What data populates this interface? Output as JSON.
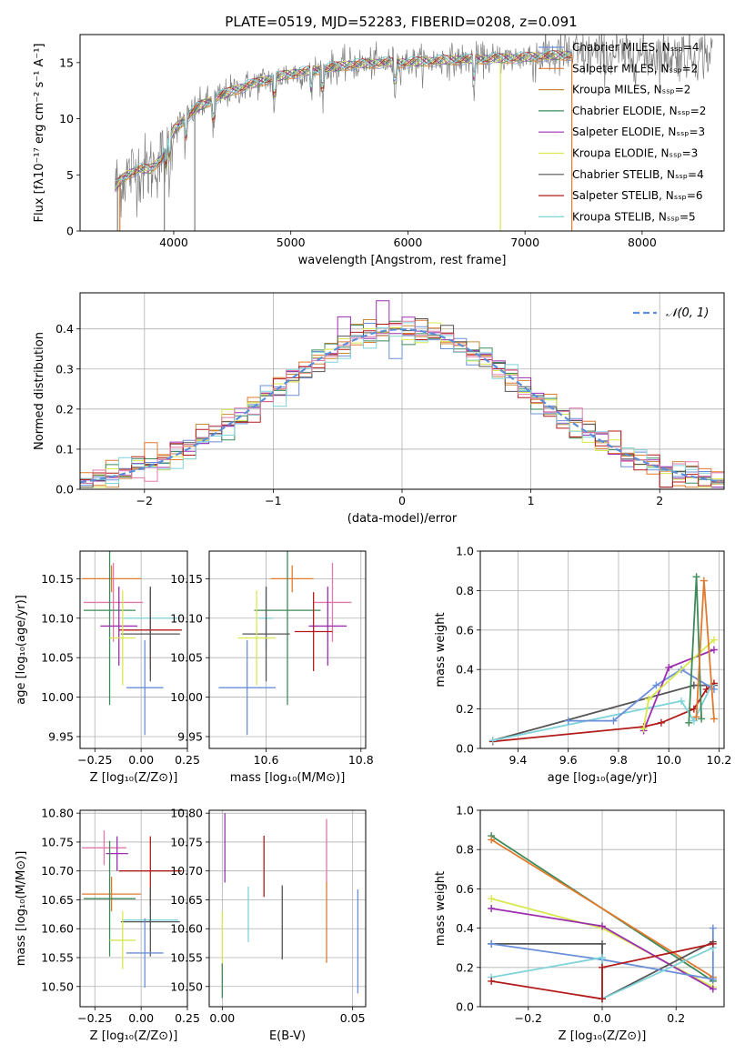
{
  "title": "PLATE=0519, MJD=52283, FIBERID=0208, z=0.091",
  "colors": {
    "Chabrier MILES": "#6a8fd8",
    "Salpeter MILES": "#e07a2e",
    "Kroupa MILES": "#c78a3a",
    "Chabrier ELODIE": "#3f8a5a",
    "Salpeter ELODIE": "#9b2fb0",
    "Kroupa ELODIE": "#d8e84e",
    "Chabrier STELIB": "#555555",
    "Salpeter STELIB": "#b31b1b",
    "Kroupa STELIB": "#7fd3da",
    "Kroupa MILES (pink)": "#e07aa8"
  },
  "chart_data": [
    {
      "id": "spectrum",
      "type": "line",
      "xlabel": "wavelength [Angstrom, rest frame]",
      "ylabel": "Flux [fλ10⁻¹⁷ erg cm⁻² s⁻¹ A⁻¹]",
      "xlim": [
        3200,
        8700
      ],
      "ylim": [
        0,
        17.5
      ],
      "xticks": [
        4000,
        5000,
        6000,
        7000,
        8000
      ],
      "yticks": [
        0,
        5,
        10,
        15
      ],
      "grid": false,
      "legend_position": "top-right",
      "legend": [
        "Chabrier MILES, Nₛₛₚ=4",
        "Salpeter MILES, Nₛₛₚ=2",
        "Kroupa MILES, Nₛₛₚ=2",
        "Chabrier ELODIE, Nₛₛₚ=2",
        "Salpeter ELODIE, Nₛₛₚ=3",
        "Kroupa ELODIE, Nₛₛₚ=3",
        "Chabrier STELIB, Nₛₛₚ=4",
        "Salpeter STELIB, Nₛₛₚ=6",
        "Kroupa STELIB, Nₛₛₚ=5"
      ],
      "continuum": {
        "x": [
          3500,
          3600,
          3700,
          3800,
          3900,
          4000,
          4200,
          4500,
          4800,
          5000,
          5200,
          5500,
          5800,
          6000,
          6300,
          6600,
          6900,
          7200,
          7400
        ],
        "y": [
          4.0,
          5.0,
          5.5,
          5.5,
          6.5,
          9.0,
          11.0,
          12.5,
          13.5,
          14.0,
          14.3,
          14.8,
          15.0,
          15.0,
          15.2,
          15.3,
          15.4,
          15.6,
          15.7
        ]
      }
    },
    {
      "id": "residuals",
      "type": "histogram",
      "xlabel": "(data-model)/error",
      "ylabel": "Normed distribution",
      "xlim": [
        -2.5,
        2.5
      ],
      "ylim": [
        0,
        0.49
      ],
      "xticks": [
        -2,
        -1,
        0,
        1,
        2
      ],
      "yticks": [
        0.0,
        0.1,
        0.2,
        0.3,
        0.4
      ],
      "grid": true,
      "legend": [
        "𝒩(0, 1)"
      ],
      "legend_position": "top-right",
      "bin_width": 0.1
    },
    {
      "id": "age_vs_Z",
      "type": "errorbar",
      "xlabel": "Z [log₁₀(Z/Z⊙)]",
      "ylabel": "age  [log₁₀(age/yr)]",
      "xlim": [
        -0.33,
        0.25
      ],
      "ylim": [
        9.935,
        10.185
      ],
      "xticks": [
        -0.25,
        0.0,
        0.25
      ],
      "yticks": [
        9.95,
        10.0,
        10.05,
        10.1,
        10.15
      ],
      "grid": true,
      "points": [
        {
          "x": -0.16,
          "y": 10.15,
          "xerr": 0.16,
          "yerr": 0.017,
          "color": "#e07a2e"
        },
        {
          "x": -0.15,
          "y": 10.12,
          "xerr": 0.16,
          "yerr": 0.05,
          "color": "#e07aa8"
        },
        {
          "x": -0.17,
          "y": 10.11,
          "xerr": 0.14,
          "yerr": 0.12,
          "color": "#3f8a5a"
        },
        {
          "x": -0.12,
          "y": 10.09,
          "xerr": 0.1,
          "yerr": 0.05,
          "color": "#9b2fb0"
        },
        {
          "x": 0.05,
          "y": 10.1,
          "xerr": 0.15,
          "yerr": 0.04,
          "color": "#7fd3da"
        },
        {
          "x": 0.05,
          "y": 10.085,
          "xerr": 0.17,
          "yerr": 0.05,
          "color": "#b31b1b"
        },
        {
          "x": 0.05,
          "y": 10.08,
          "xerr": 0.16,
          "yerr": 0.06,
          "color": "#555555"
        },
        {
          "x": -0.1,
          "y": 10.075,
          "xerr": 0.07,
          "yerr": 0.06,
          "color": "#d8e84e"
        },
        {
          "x": 0.02,
          "y": 10.012,
          "xerr": 0.1,
          "yerr": 0.06,
          "color": "#6a8fd8"
        }
      ]
    },
    {
      "id": "age_vs_mass",
      "type": "errorbar",
      "xlabel": "mass [log₁₀(M/M⊙)]",
      "ylabel": "",
      "xlim": [
        10.48,
        10.81
      ],
      "ylim": [
        9.935,
        10.185
      ],
      "xticks": [
        10.6,
        10.8
      ],
      "yticks": [
        9.95,
        10.0,
        10.05,
        10.1,
        10.15
      ],
      "grid": true,
      "points": [
        {
          "x": 10.655,
          "y": 10.15,
          "xerr": 0.045,
          "yerr": 0.017,
          "color": "#e07a2e"
        },
        {
          "x": 10.74,
          "y": 10.12,
          "xerr": 0.04,
          "yerr": 0.05,
          "color": "#e07aa8"
        },
        {
          "x": 10.645,
          "y": 10.11,
          "xerr": 0.07,
          "yerr": 0.12,
          "color": "#3f8a5a"
        },
        {
          "x": 10.73,
          "y": 10.09,
          "xerr": 0.04,
          "yerr": 0.05,
          "color": "#9b2fb0"
        },
        {
          "x": 10.6,
          "y": 10.1,
          "xerr": 0.015,
          "yerr": 0.04,
          "color": "#7fd3da"
        },
        {
          "x": 10.7,
          "y": 10.083,
          "xerr": 0.04,
          "yerr": 0.05,
          "color": "#b31b1b"
        },
        {
          "x": 10.6,
          "y": 10.08,
          "xerr": 0.05,
          "yerr": 0.06,
          "color": "#555555"
        },
        {
          "x": 10.58,
          "y": 10.075,
          "xerr": 0.04,
          "yerr": 0.06,
          "color": "#d8e84e"
        },
        {
          "x": 10.56,
          "y": 10.012,
          "xerr": 0.06,
          "yerr": 0.06,
          "color": "#6a8fd8"
        }
      ]
    },
    {
      "id": "weight_vs_age",
      "type": "line",
      "xlabel": "age  [log₁₀(age/yr)]",
      "ylabel": "mass weight",
      "xlim": [
        9.25,
        10.22
      ],
      "ylim": [
        0,
        1.0
      ],
      "xticks": [
        9.4,
        9.6,
        9.8,
        10.0,
        10.2
      ],
      "yticks": [
        0.0,
        0.2,
        0.4,
        0.6,
        0.8,
        1.0
      ],
      "grid": true,
      "series": [
        {
          "color": "#555555",
          "x": [
            9.3,
            10.1,
            10.18
          ],
          "y": [
            0.04,
            0.32,
            0.32
          ]
        },
        {
          "color": "#b31b1b",
          "x": [
            9.3,
            9.9,
            9.97,
            10.1,
            10.15,
            10.18
          ],
          "y": [
            0.035,
            0.11,
            0.13,
            0.2,
            0.3,
            0.33
          ]
        },
        {
          "color": "#7fd3da",
          "x": [
            9.3,
            10.05,
            10.1,
            10.17
          ],
          "y": [
            0.04,
            0.24,
            0.14,
            0.32
          ]
        },
        {
          "color": "#6a8fd8",
          "x": [
            9.6,
            9.78,
            9.95,
            10.05,
            10.18
          ],
          "y": [
            0.14,
            0.14,
            0.32,
            0.4,
            0.3
          ]
        },
        {
          "color": "#9b2fb0",
          "x": [
            9.9,
            10.0,
            10.18
          ],
          "y": [
            0.09,
            0.41,
            0.5
          ]
        },
        {
          "color": "#d8e84e",
          "x": [
            9.9,
            9.92,
            10.18
          ],
          "y": [
            0.1,
            0.25,
            0.55
          ]
        },
        {
          "color": "#3f8a5a",
          "x": [
            10.08,
            10.11,
            10.13
          ],
          "y": [
            0.13,
            0.87,
            0.15
          ]
        },
        {
          "color": "#e07a2e",
          "x": [
            10.11,
            10.14,
            10.18
          ],
          "y": [
            0.16,
            0.85,
            0.15
          ]
        }
      ]
    },
    {
      "id": "mass_vs_Z",
      "type": "errorbar",
      "xlabel": "Z [log₁₀(Z/Z⊙)]",
      "ylabel": "mass [log₁₀(M/M⊙)]",
      "xlim": [
        -0.33,
        0.25
      ],
      "ylim": [
        10.465,
        10.805
      ],
      "xticks": [
        -0.25,
        0.0,
        0.25
      ],
      "yticks": [
        10.5,
        10.55,
        10.6,
        10.65,
        10.7,
        10.75,
        10.8
      ],
      "grid": true,
      "points": [
        {
          "x": -0.2,
          "y": 10.74,
          "xerr": 0.12,
          "yerr": 0.03,
          "color": "#e07aa8"
        },
        {
          "x": -0.13,
          "y": 10.73,
          "xerr": 0.06,
          "yerr": 0.03,
          "color": "#9b2fb0"
        },
        {
          "x": 0.05,
          "y": 10.7,
          "xerr": 0.17,
          "yerr": 0.06,
          "color": "#b31b1b"
        },
        {
          "x": -0.16,
          "y": 10.66,
          "xerr": 0.16,
          "yerr": 0.03,
          "color": "#e07a2e"
        },
        {
          "x": -0.17,
          "y": 10.652,
          "xerr": 0.14,
          "yerr": 0.1,
          "color": "#3f8a5a"
        },
        {
          "x": 0.05,
          "y": 10.615,
          "xerr": 0.15,
          "yerr": 0.02,
          "color": "#7fd3da"
        },
        {
          "x": 0.05,
          "y": 10.612,
          "xerr": 0.16,
          "yerr": 0.06,
          "color": "#555555"
        },
        {
          "x": -0.1,
          "y": 10.58,
          "xerr": 0.07,
          "yerr": 0.05,
          "color": "#d8e84e"
        },
        {
          "x": 0.02,
          "y": 10.558,
          "xerr": 0.1,
          "yerr": 0.06,
          "color": "#6a8fd8"
        }
      ]
    },
    {
      "id": "mass_vs_ebv",
      "type": "errorbar",
      "xlabel": "E(B-V)",
      "ylabel": "",
      "xlim": [
        -0.005,
        0.055
      ],
      "ylim": [
        10.465,
        10.805
      ],
      "xticks": [
        0.0,
        0.05
      ],
      "yticks": [
        10.5,
        10.55,
        10.6,
        10.65,
        10.7,
        10.75,
        10.8
      ],
      "grid": true,
      "points": [
        {
          "x": 0.001,
          "y": 10.74,
          "xerr": 0,
          "yerr": 0.06,
          "color": "#9b2fb0"
        },
        {
          "x": 0.0,
          "y": 10.575,
          "xerr": 0,
          "yerr": 0.055,
          "color": "#d8e84e"
        },
        {
          "x": 0.0,
          "y": 10.51,
          "xerr": 0,
          "yerr": 0.03,
          "color": "#3f8a5a"
        },
        {
          "x": 0.01,
          "y": 10.625,
          "xerr": 0,
          "yerr": 0.048,
          "color": "#7fd3da"
        },
        {
          "x": 0.016,
          "y": 10.708,
          "xerr": 0,
          "yerr": 0.053,
          "color": "#b31b1b"
        },
        {
          "x": 0.023,
          "y": 10.611,
          "xerr": 0,
          "yerr": 0.064,
          "color": "#555555"
        },
        {
          "x": 0.04,
          "y": 10.735,
          "xerr": 0,
          "yerr": 0.055,
          "color": "#e07aa8"
        },
        {
          "x": 0.04,
          "y": 10.611,
          "xerr": 0,
          "yerr": 0.07,
          "color": "#e07a2e"
        },
        {
          "x": 0.052,
          "y": 10.578,
          "xerr": 0,
          "yerr": 0.09,
          "color": "#6a8fd8"
        }
      ]
    },
    {
      "id": "weight_vs_Z",
      "type": "line",
      "xlabel": "Z [log₁₀(Z/Z⊙)]",
      "ylabel": "mass weight",
      "xlim": [
        -0.33,
        0.33
      ],
      "ylim": [
        0,
        1.0
      ],
      "xticks": [
        -0.2,
        0.0,
        0.2
      ],
      "yticks": [
        0.0,
        0.2,
        0.4,
        0.6,
        0.8,
        1.0
      ],
      "grid": true,
      "series": [
        {
          "color": "#3f8a5a",
          "x": [
            -0.3,
            0.3
          ],
          "y": [
            0.87,
            0.13
          ]
        },
        {
          "color": "#e07a2e",
          "x": [
            -0.3,
            0.3
          ],
          "y": [
            0.85,
            0.15
          ]
        },
        {
          "color": "#d8e84e",
          "x": [
            -0.3,
            0.0,
            0.3
          ],
          "y": [
            0.55,
            0.4,
            0.1
          ]
        },
        {
          "color": "#9b2fb0",
          "x": [
            -0.3,
            0.0,
            0.3
          ],
          "y": [
            0.5,
            0.41,
            0.09
          ]
        },
        {
          "color": "#555555",
          "x": [
            -0.3,
            0.0,
            0.0,
            0.3
          ],
          "y": [
            0.32,
            0.32,
            0.04,
            0.33
          ]
        },
        {
          "color": "#6a8fd8",
          "x": [
            -0.3,
            0.0,
            0.3,
            0.3
          ],
          "y": [
            0.32,
            0.24,
            0.14,
            0.4
          ]
        },
        {
          "color": "#7fd3da",
          "x": [
            -0.3,
            0.0,
            0.0,
            0.3
          ],
          "y": [
            0.15,
            0.25,
            0.04,
            0.3
          ]
        },
        {
          "color": "#b31b1b",
          "x": [
            -0.3,
            0.0,
            0.0,
            0.3
          ],
          "y": [
            0.13,
            0.04,
            0.2,
            0.32
          ]
        }
      ]
    }
  ]
}
